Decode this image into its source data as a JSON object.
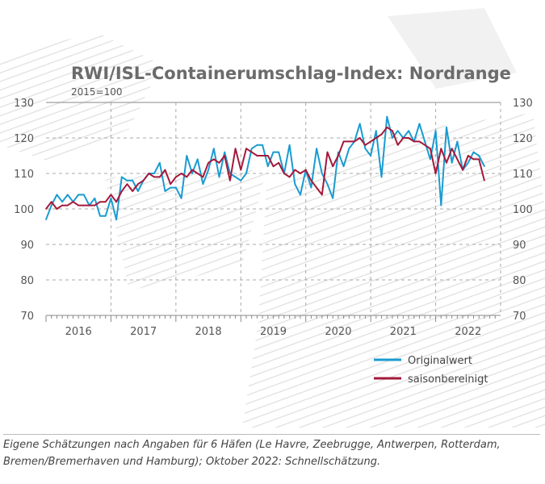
{
  "chart_data": {
    "type": "line",
    "title": "RWI/ISL-Containerumschlag-Index: Nordrange",
    "subtitle": "2015=100",
    "ylim": [
      70,
      130
    ],
    "yticks": [
      70,
      80,
      90,
      100,
      110,
      120,
      130
    ],
    "xticklabels": [
      "2016",
      "2017",
      "2018",
      "2019",
      "2020",
      "2021",
      "2022"
    ],
    "x_start": "2016-01",
    "x_end": "2022-10",
    "frequency": "monthly",
    "grid": true,
    "legend": "bottom-right",
    "series": [
      {
        "name": "Originalwert",
        "color": "#1a9bd0",
        "values": [
          97,
          101,
          104,
          102,
          104,
          102,
          104,
          104,
          101,
          103,
          98,
          98,
          103,
          97,
          109,
          108,
          108,
          105,
          108,
          110,
          110,
          113,
          105,
          106,
          106,
          103,
          115,
          110,
          114,
          107,
          111,
          117,
          109,
          116,
          110,
          109,
          108,
          110,
          117,
          118,
          118,
          112,
          116,
          116,
          110,
          118,
          107,
          104,
          111,
          106,
          117,
          110,
          107,
          103,
          116,
          112,
          117,
          119,
          124,
          117,
          115,
          122,
          109,
          126,
          120,
          122,
          120,
          122,
          119,
          124,
          119,
          114,
          122,
          101,
          123,
          113,
          119,
          111,
          113,
          116,
          115,
          112
        ]
      },
      {
        "name": "saisonbereinigt",
        "color": "#a3193a",
        "values": [
          100,
          102,
          100,
          101,
          101,
          102,
          101,
          101,
          101,
          101,
          102,
          102,
          104,
          102,
          105,
          107,
          105,
          107,
          108,
          110,
          109,
          109,
          111,
          107,
          109,
          110,
          109,
          111,
          110,
          109,
          113,
          114,
          113,
          115,
          108,
          117,
          111,
          117,
          116,
          115,
          115,
          115,
          112,
          113,
          110,
          109,
          111,
          110,
          111,
          108,
          106,
          104,
          116,
          112,
          115,
          119,
          119,
          119,
          120,
          118,
          119,
          120,
          121,
          123,
          122,
          118,
          120,
          120,
          119,
          119,
          118,
          117,
          110,
          117,
          113,
          117,
          114,
          111,
          115,
          114,
          114,
          108
        ]
      }
    ]
  },
  "caption": "Eigene Schätzungen nach Angaben für 6 Häfen (Le Havre, Zeebrugge, Antwerpen, Rotterdam, Bremen/Bremerhaven und Hamburg); Oktober 2022: Schnellschätzung."
}
